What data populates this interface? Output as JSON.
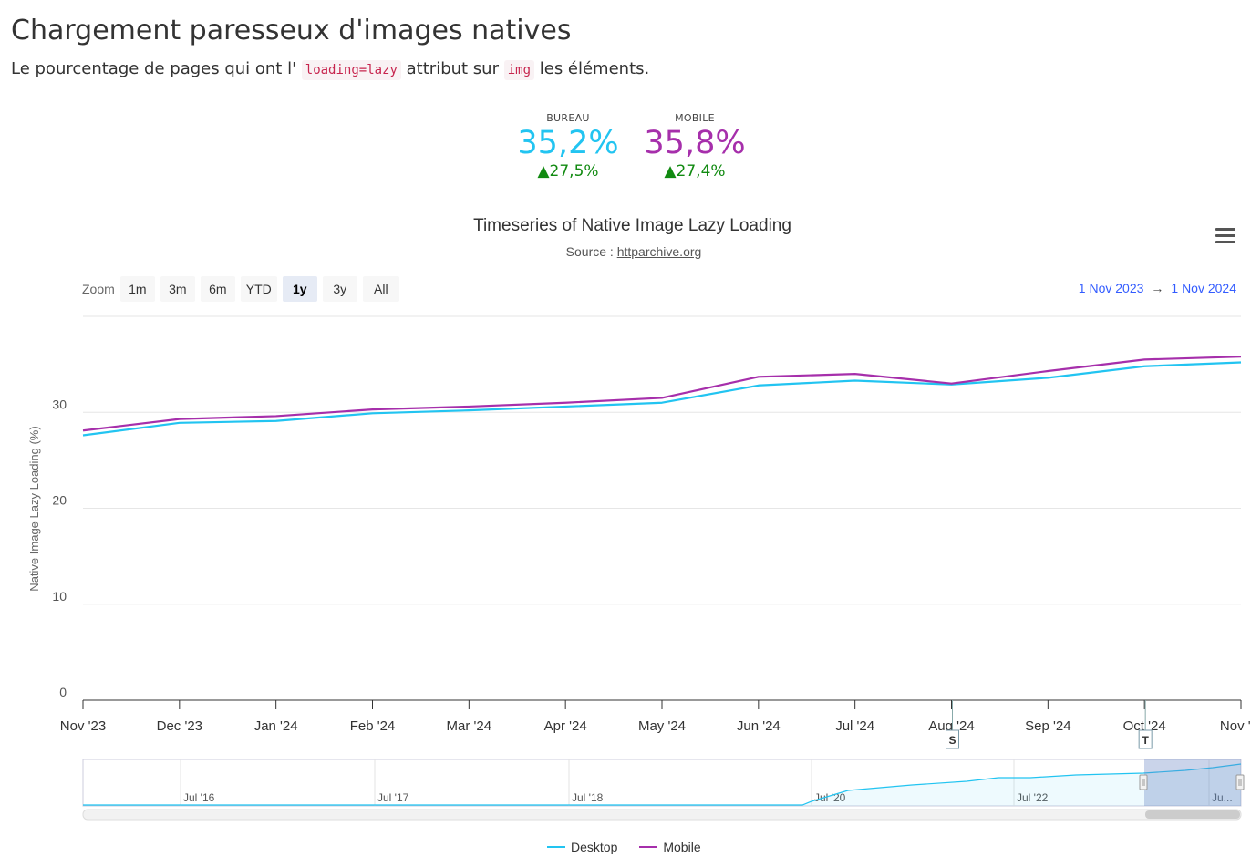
{
  "heading": "Chargement paresseux d'images natives",
  "description": {
    "part1": "Le pourcentage de pages qui ont l' ",
    "code1": "loading=lazy",
    "part2": " attribut sur ",
    "code2": "img",
    "part3": " les éléments."
  },
  "kpis": [
    {
      "label": "BUREAU",
      "value": "35,2%",
      "change": "▲27,5%",
      "color": "#22c4f1"
    },
    {
      "label": "MOBILE",
      "value": "35,8%",
      "change": "▲27,4%",
      "color": "#a62fab"
    }
  ],
  "menu_icon": "hamburger-icon",
  "zoom": {
    "label": "Zoom",
    "buttons": [
      "1m",
      "3m",
      "6m",
      "YTD",
      "1y",
      "3y",
      "All"
    ],
    "active": "1y"
  },
  "range": {
    "from": "1 Nov 2023",
    "arrow": "→",
    "to": "1 Nov 2024"
  },
  "chart_data": {
    "type": "line",
    "title": "Timeseries of Native Image Lazy Loading",
    "subtitle_prefix": "Source : ",
    "subtitle_link": "httparchive.org",
    "ylabel": "Native Image Lazy Loading (%)",
    "xlabel": "",
    "ylim": [
      0,
      40
    ],
    "yticks": [
      0,
      10,
      20,
      30
    ],
    "grid": true,
    "categories": [
      "Nov '23",
      "Dec '23",
      "Jan '24",
      "Feb '24",
      "Mar '24",
      "Apr '24",
      "May '24",
      "Jun '24",
      "Jul '24",
      "Aug '24",
      "Sep '24",
      "Oct '24",
      "Nov '..."
    ],
    "series": [
      {
        "name": "Desktop",
        "color": "#22c4f1",
        "values": [
          27.6,
          28.9,
          29.1,
          29.9,
          30.2,
          30.6,
          31.0,
          32.8,
          33.3,
          32.9,
          33.6,
          34.8,
          35.2
        ]
      },
      {
        "name": "Mobile",
        "color": "#a62fab",
        "values": [
          28.1,
          29.3,
          29.6,
          30.3,
          30.6,
          31.0,
          31.5,
          33.7,
          34.0,
          33.0,
          34.3,
          35.5,
          35.8
        ]
      }
    ],
    "flags": [
      {
        "label": "S",
        "month": "Aug '24"
      },
      {
        "label": "T",
        "month": "Oct '24"
      }
    ],
    "navigator": {
      "labels": [
        "Jul '16",
        "Jul '17",
        "Jul '18",
        "Jul '20",
        "Jul '22",
        "Ju..."
      ]
    },
    "legend": [
      "Desktop",
      "Mobile"
    ],
    "legend_position": "bottom-center"
  }
}
